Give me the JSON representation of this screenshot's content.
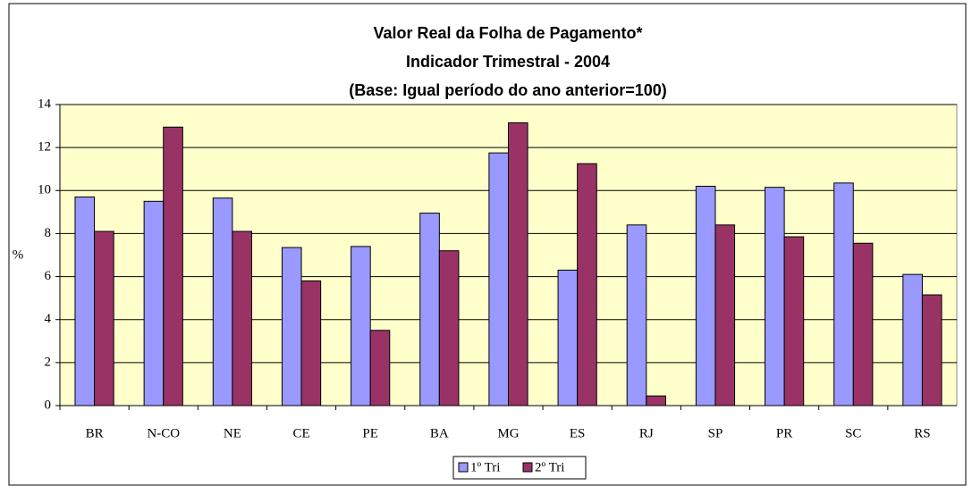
{
  "chart_data": {
    "type": "bar",
    "title": [
      "Valor Real da Folha de Pagamento*",
      "Indicador Trimestral - 2004",
      "(Base: Igual período do ano anterior=100)"
    ],
    "y_label": "%",
    "categories": [
      "BR",
      "N-CO",
      "NE",
      "CE",
      "PE",
      "BA",
      "MG",
      "ES",
      "RJ",
      "SP",
      "PR",
      "SC",
      "RS"
    ],
    "series": [
      {
        "name": "1º Tri",
        "color": "#9999ff",
        "values": [
          9.7,
          9.5,
          9.65,
          7.35,
          7.4,
          8.95,
          11.75,
          6.3,
          8.4,
          10.2,
          10.15,
          10.35,
          6.1
        ]
      },
      {
        "name": "2º Tri",
        "color": "#993366",
        "values": [
          8.1,
          12.95,
          8.1,
          5.8,
          3.5,
          7.2,
          13.15,
          11.25,
          0.45,
          8.4,
          7.85,
          7.55,
          5.15
        ]
      }
    ],
    "ylim": [
      0,
      14
    ],
    "yticks": [
      0,
      2,
      4,
      6,
      8,
      10,
      12,
      14
    ],
    "grid": true,
    "legend": "bottom"
  }
}
